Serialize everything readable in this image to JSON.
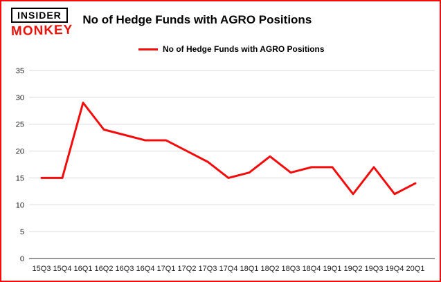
{
  "header": {
    "logo_top": "INSIDER",
    "logo_bottom": "MONKEY",
    "title": "No of Hedge Funds with AGRO Positions"
  },
  "legend": {
    "label": "No of Hedge Funds with AGRO Positions"
  },
  "colors": {
    "line": "#f40b0b",
    "frame": "#f40b0b",
    "grid": "#d9d9d9",
    "axis": "#595959",
    "text": "#1a1a1a"
  },
  "chart_data": {
    "type": "line",
    "title": "No of Hedge Funds with AGRO Positions",
    "categories": [
      "15Q3",
      "15Q4",
      "16Q1",
      "16Q2",
      "16Q3",
      "16Q4",
      "17Q1",
      "17Q2",
      "17Q3",
      "17Q4",
      "18Q1",
      "18Q2",
      "18Q3",
      "18Q4",
      "19Q1",
      "19Q2",
      "19Q3",
      "19Q4",
      "20Q1"
    ],
    "values": [
      15,
      15,
      29,
      24,
      23,
      22,
      22,
      20,
      18,
      15,
      16,
      19,
      16,
      17,
      17,
      12,
      17,
      12,
      14
    ],
    "xlabel": "",
    "ylabel": "",
    "ylim": [
      0,
      35
    ],
    "yticks": [
      0,
      5,
      10,
      15,
      20,
      25,
      30,
      35
    ],
    "grid": "horizontal",
    "legend_position": "top",
    "line_color": "#f40b0b",
    "line_width": 3
  }
}
